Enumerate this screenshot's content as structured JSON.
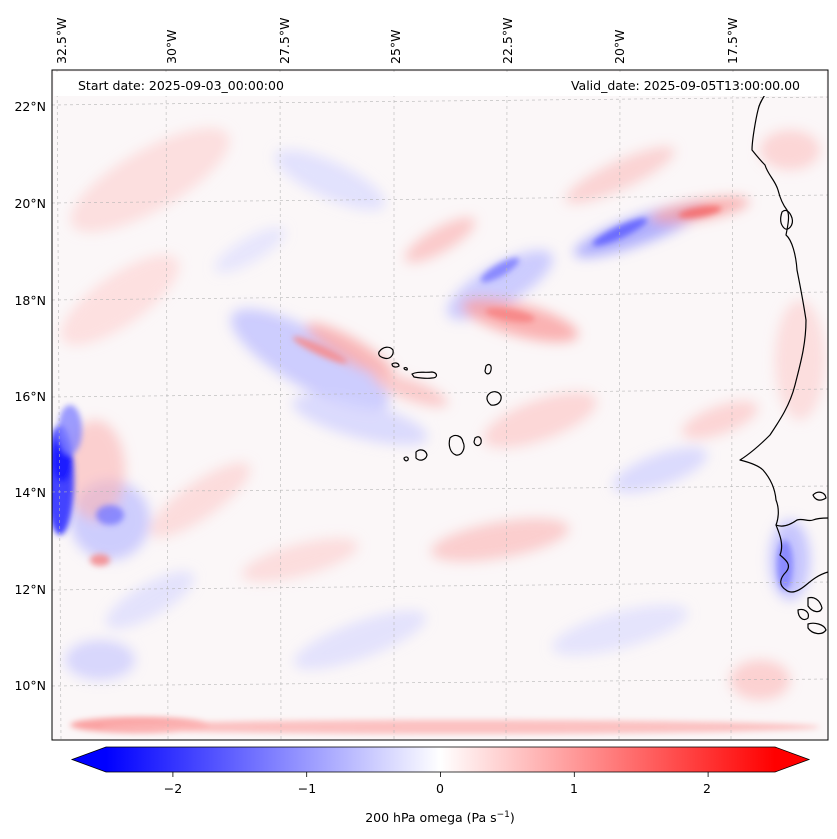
{
  "chart_data": {
    "type": "map",
    "title": "",
    "field": "200 hPa omega",
    "start_date_label": "Start date: 2025-09-03_00:00:00",
    "valid_date_label": "Valid_date: 2025-09-05T13:00:00.00",
    "longitude_ticks": [
      "32.5°W",
      "30°W",
      "27.5°W",
      "25°W",
      "22.5°W",
      "20°W",
      "17.5°W"
    ],
    "longitude_values": [
      -32.5,
      -30,
      -27.5,
      -25,
      -22.5,
      -20,
      -17.5
    ],
    "latitude_ticks": [
      "22°N",
      "20°N",
      "18°N",
      "16°N",
      "14°N",
      "12°N",
      "10°N"
    ],
    "latitude_values": [
      22,
      20,
      18,
      16,
      14,
      12,
      10
    ],
    "lon_range": [
      -32.6,
      -15.0
    ],
    "lat_range": [
      8.9,
      22.8
    ],
    "colorbar": {
      "label_html": "200 hPa omega (Pa s<sup>−1</sup>)",
      "label_text": "200 hPa omega (Pa s",
      "label_exponent": "−1",
      "label_suffix": ")",
      "tick_labels": [
        "−2",
        "−1",
        "0",
        "1",
        "2"
      ],
      "tick_values": [
        -2,
        -1,
        0,
        1,
        2
      ],
      "vmin": -2.5,
      "vmax": 2.5,
      "extend": "both",
      "colormap": "bwr",
      "color_low": "#0000ff",
      "color_mid": "#ffffff",
      "color_high": "#ff0000"
    },
    "features": {
      "coastline_color": "#000000",
      "gridline_color": "#bbbbbb"
    }
  }
}
